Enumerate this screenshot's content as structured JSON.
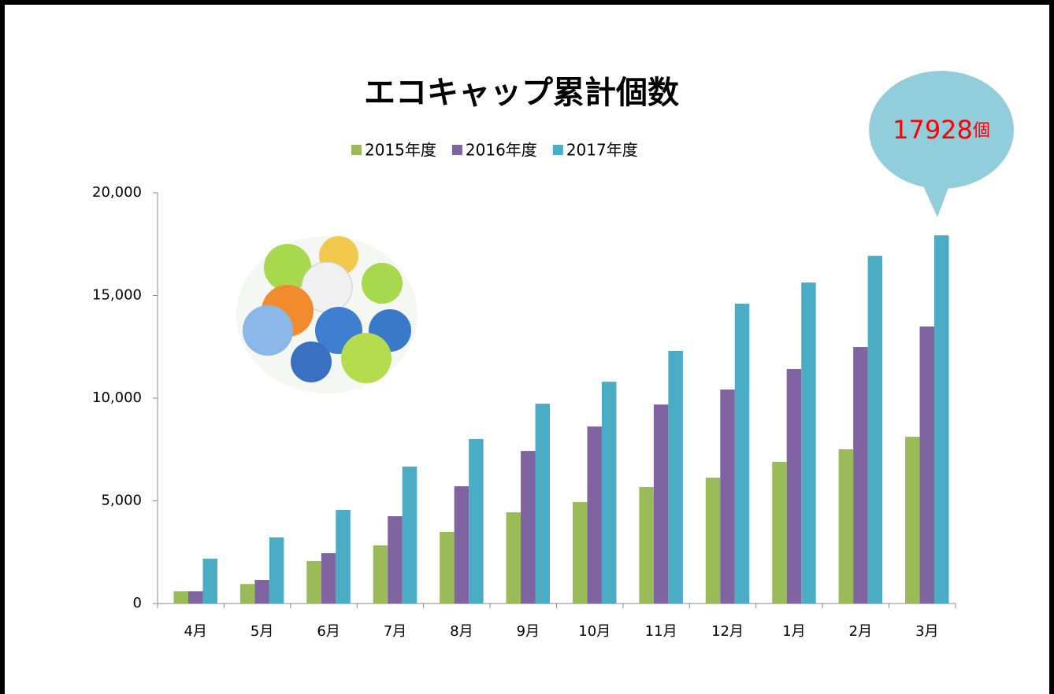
{
  "chart_data": {
    "type": "bar",
    "title": "エコキャップ累計個数",
    "categories": [
      "4月",
      "5月",
      "6月",
      "7月",
      "8月",
      "9月",
      "10月",
      "11月",
      "12月",
      "1月",
      "2月",
      "3月"
    ],
    "series": [
      {
        "name": "2015年度",
        "color": "#9bbb59",
        "values": [
          600,
          950,
          2070,
          2830,
          3490,
          4440,
          4940,
          5670,
          6130,
          6900,
          7510,
          8120
        ]
      },
      {
        "name": "2016年度",
        "color": "#8064a2",
        "values": [
          600,
          1150,
          2450,
          4250,
          5710,
          7430,
          8620,
          9690,
          10420,
          11420,
          12490,
          13490
        ]
      },
      {
        "name": "2017年度",
        "color": "#4bacc6",
        "values": [
          2180,
          3220,
          4560,
          6670,
          8010,
          9730,
          10800,
          12300,
          14600,
          15630,
          16930,
          17928
        ]
      }
    ],
    "ylim": [
      0,
      20000
    ],
    "yticks": [
      0,
      {
        "value": 5000,
        "label": "5,000"
      },
      {
        "value": 10000,
        "label": "10,000"
      },
      {
        "value": 15000,
        "label": "15,000"
      },
      {
        "value": 20000,
        "label": "20,000"
      }
    ],
    "grid": false,
    "legend": "top",
    "annotation": {
      "text": "17928",
      "unit": "個",
      "color": "#ff0000",
      "bubble_color": "#92cddc"
    }
  }
}
